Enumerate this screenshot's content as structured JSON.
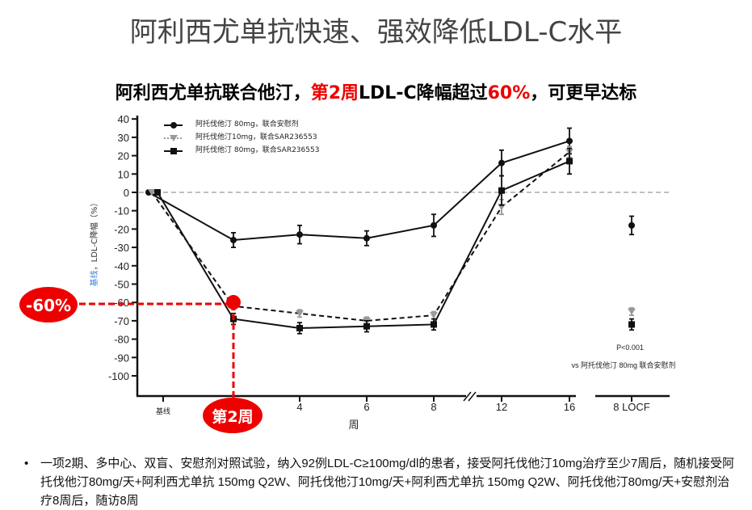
{
  "title": "阿利西尤单抗快速、强效降低LDL-C水平",
  "subtitle": {
    "part1": "阿利西尤单抗联合他汀，",
    "part2": "第2周",
    "part3": "LDL-C降幅超过",
    "part4": "60%",
    "part5": "，可更早达标"
  },
  "callouts": {
    "percent": "-60%",
    "week": "第2周"
  },
  "chart_data": {
    "type": "line",
    "title": "",
    "ylabel_prefix": "基线",
    "ylabel": "，LDL-C降幅（%）",
    "xlabel": "周",
    "categories": [
      "基线",
      "2",
      "4",
      "6",
      "8",
      "12",
      "16",
      "8 LOCF"
    ],
    "x_tick_labels": [
      "基线",
      "4",
      "6",
      "8",
      "12",
      "16",
      "8 LOCF"
    ],
    "yticks": [
      40,
      30,
      20,
      10,
      0,
      -10,
      -20,
      -30,
      -40,
      -50,
      -60,
      -70,
      -80,
      -90,
      -100
    ],
    "ylim": [
      -110,
      40
    ],
    "series": [
      {
        "name": "阿托伐他汀 80mg，联合安慰剂",
        "marker": "circle",
        "dash": false,
        "color": "#111111",
        "values": [
          0,
          -26,
          -23,
          -25,
          -18,
          16,
          28,
          -18
        ],
        "errors": [
          0,
          4,
          5,
          4,
          6,
          7,
          7,
          5
        ]
      },
      {
        "name": "阿托伐他汀10mg，联合SAR236553",
        "marker": "triangle",
        "dash": true,
        "color": "#999999",
        "values": [
          0,
          -62,
          -66,
          -70,
          -67,
          -8,
          22,
          -65
        ],
        "errors": [
          0,
          2,
          2,
          2,
          2,
          4,
          3,
          2
        ]
      },
      {
        "name": "阿托伐他汀 80mg，联合SAR236553",
        "marker": "square",
        "dash": false,
        "color": "#111111",
        "values": [
          0,
          -69,
          -74,
          -73,
          -72,
          1,
          17,
          -72
        ],
        "errors": [
          0,
          3,
          3,
          3,
          3,
          8,
          7,
          3
        ]
      }
    ],
    "annotations": [
      "P<0.001",
      "vs 阿托伐他汀 80mg 联合安慰剂"
    ]
  },
  "note": "一项2期、多中心、双盲、安慰剂对照试验，纳入92例LDL-C≥100mg/dl的患者，接受阿托伐他汀10mg治疗至少7周后，随机接受阿托伐他汀80mg/天+阿利西尤单抗 150mg Q2W、阿托伐他汀10mg/天+阿利西尤单抗 150mg Q2W、阿托伐他汀80mg/天+安慰剂治疗8周后，随访8周"
}
